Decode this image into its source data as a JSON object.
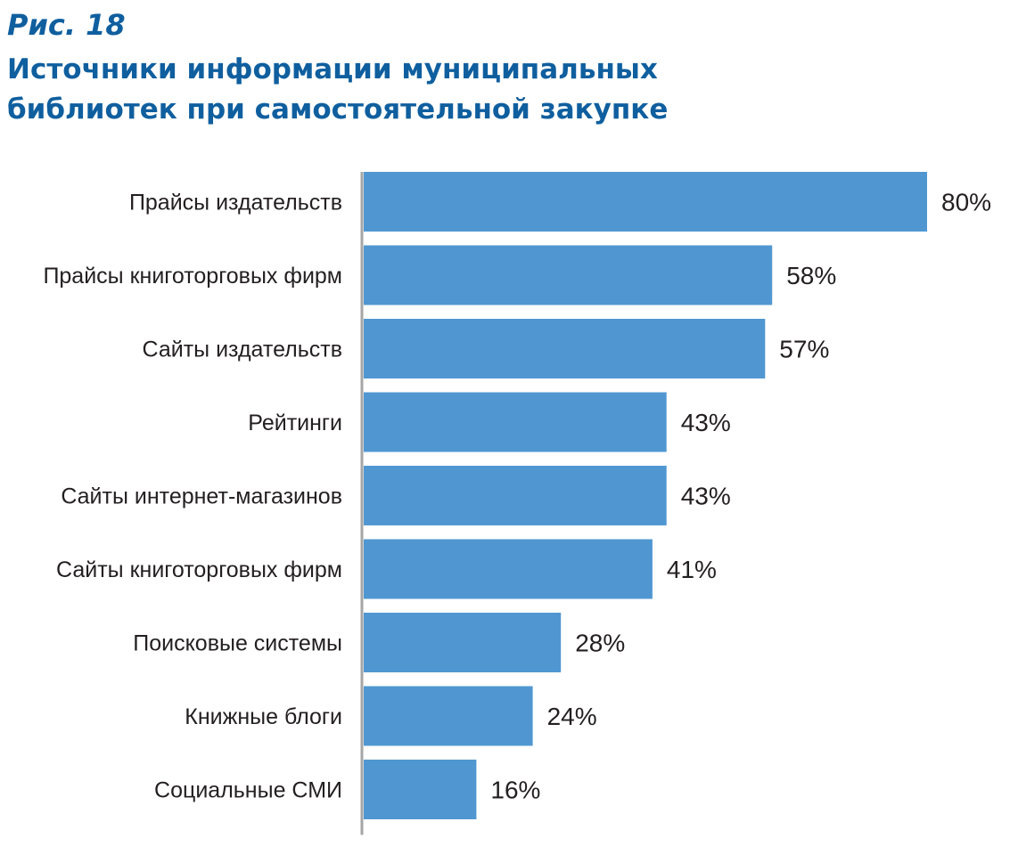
{
  "figure": {
    "number": "Рис. 18",
    "title": "Источники информации муниципальных\nбиблиотек при самостоятельной закупке"
  },
  "colors": {
    "bar": "#5097d2",
    "title": "#0f5f9f",
    "axis": "#a6a6a6",
    "text": "#231f20"
  },
  "chart_data": {
    "type": "bar",
    "orientation": "horizontal",
    "title": "Источники информации муниципальных библиотек при самостоятельной закупке",
    "categories": [
      "Прайсы издательств",
      "Прайсы книготорговых фирм",
      "Сайты издательств",
      "Рейтинги",
      "Сайты интернет-магазинов",
      "Сайты книготорговых фирм",
      "Поисковые системы",
      "Книжные блоги",
      "Социальные СМИ"
    ],
    "values": [
      80,
      58,
      57,
      43,
      43,
      41,
      28,
      24,
      16
    ],
    "value_labels": [
      "80%",
      "58%",
      "57%",
      "43%",
      "43%",
      "41%",
      "28%",
      "24%",
      "16%"
    ],
    "unit": "%",
    "xlim": [
      0,
      80
    ],
    "xlabel": "",
    "ylabel": "",
    "grid": false,
    "legend": "none"
  }
}
